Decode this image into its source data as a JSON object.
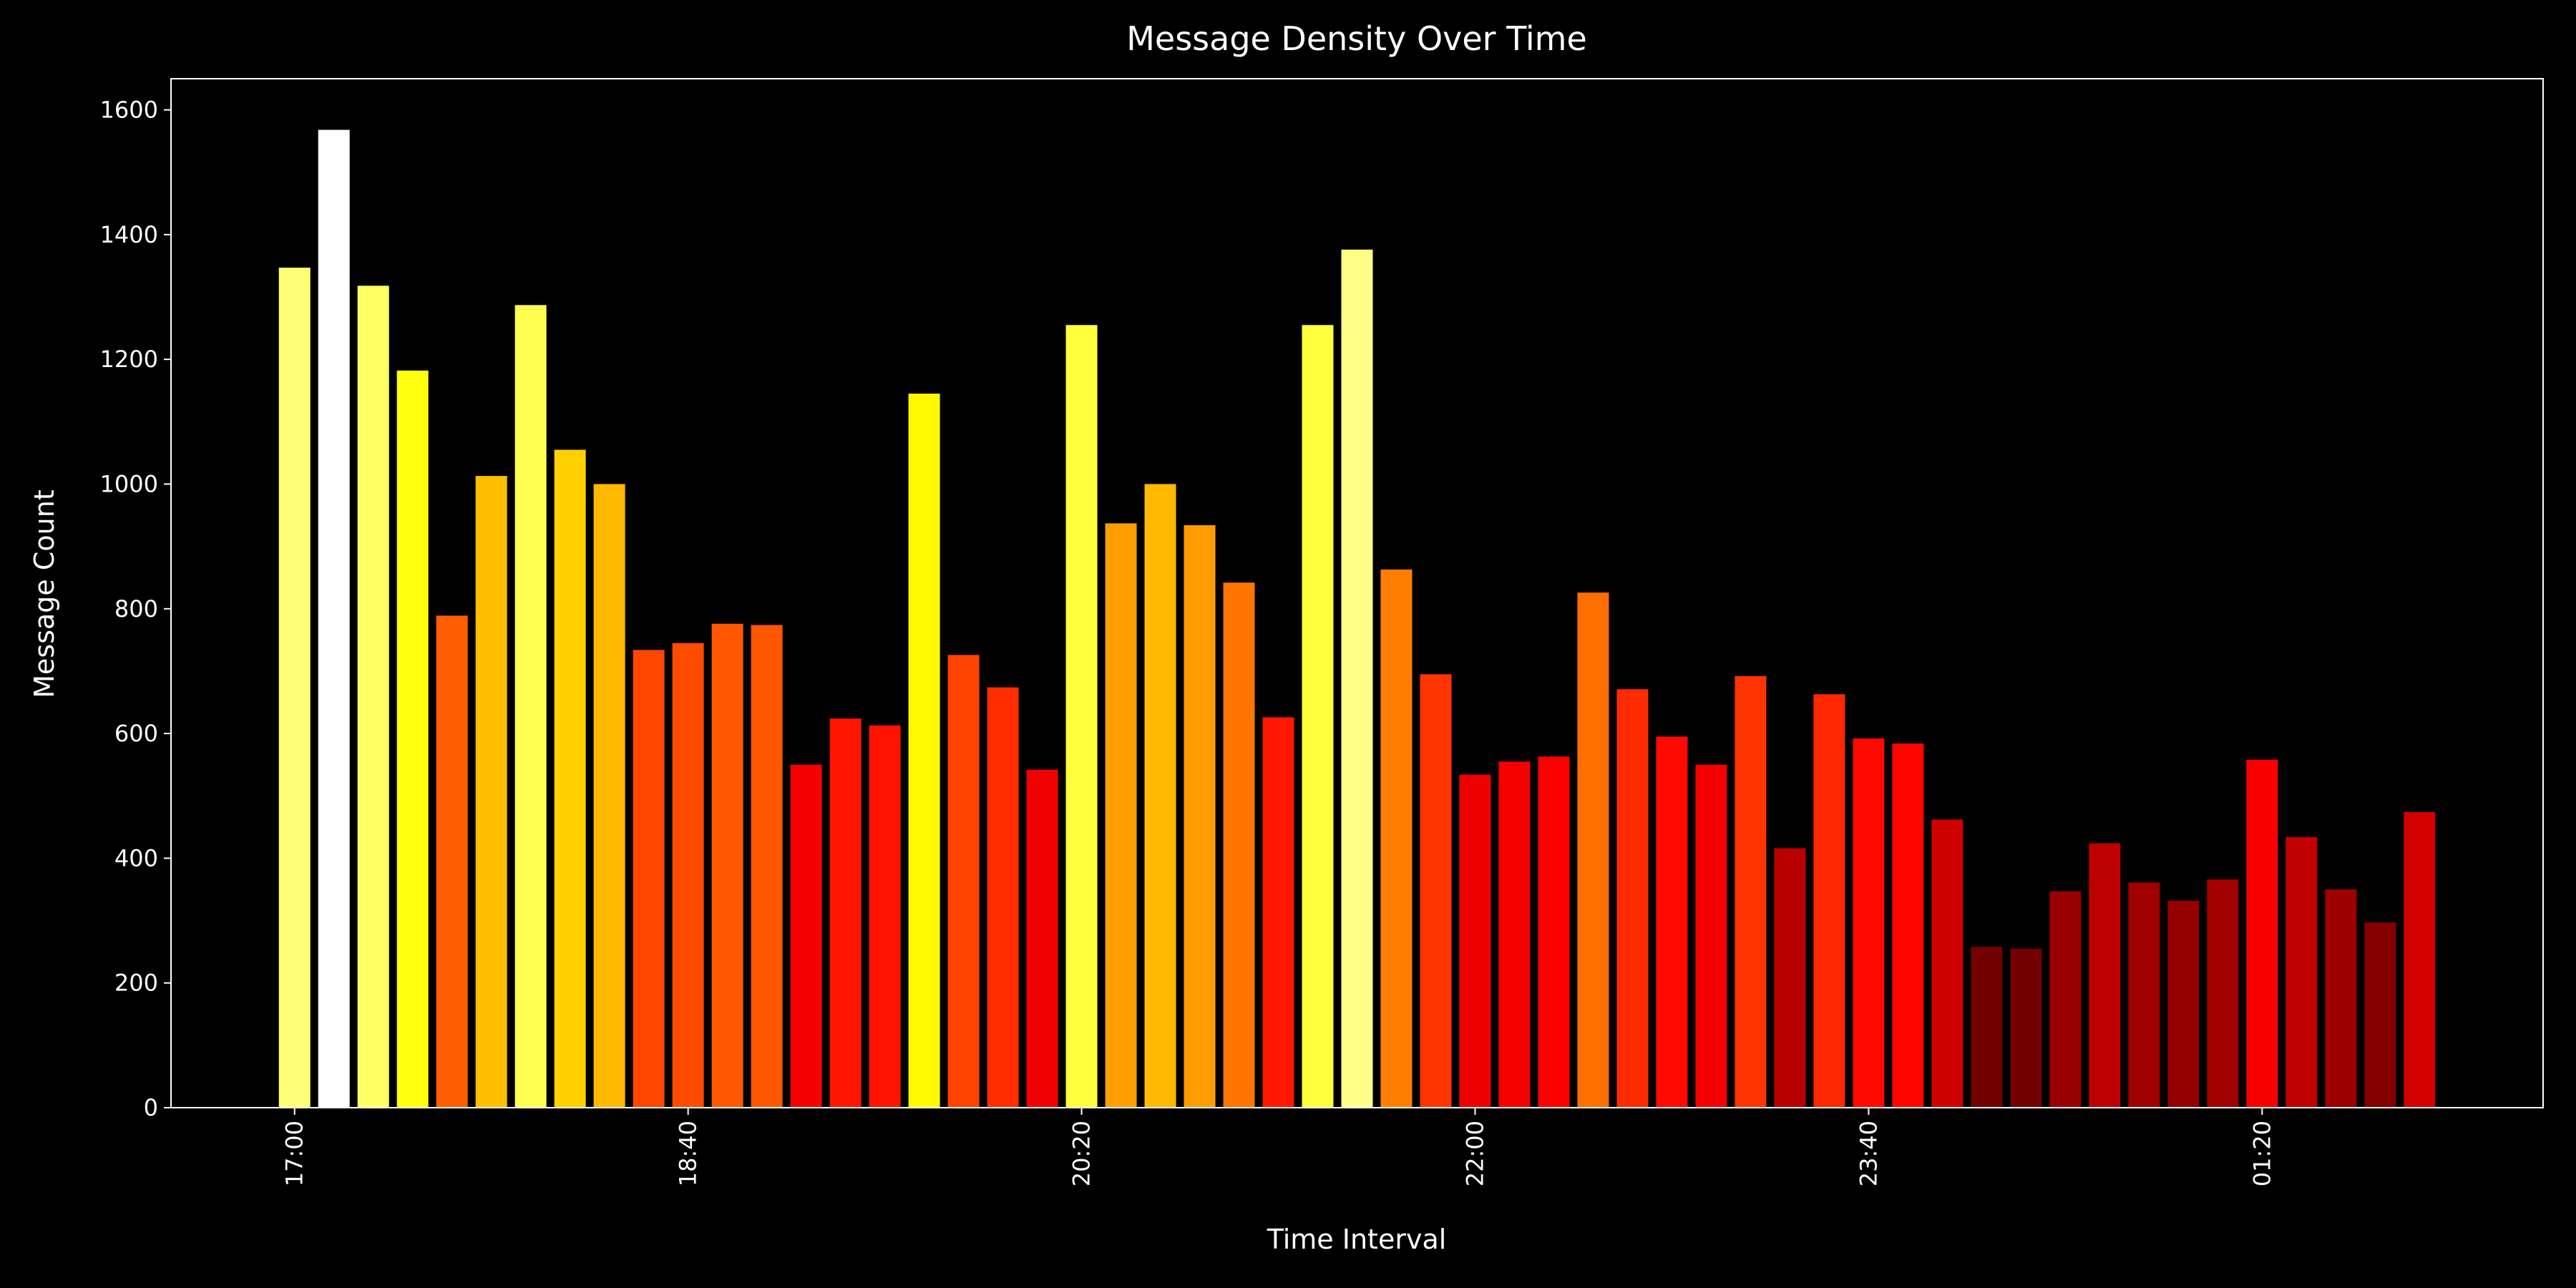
{
  "chart_data": {
    "type": "bar",
    "title": "Message Density Over Time",
    "x_label": "Time Interval",
    "y_label": "Message Count",
    "categories": [
      "17:00",
      null,
      null,
      null,
      null,
      null,
      null,
      null,
      null,
      null,
      "18:40",
      null,
      null,
      null,
      null,
      null,
      null,
      null,
      null,
      null,
      "20:20",
      null,
      null,
      null,
      null,
      null,
      null,
      null,
      null,
      null,
      "22:00",
      null,
      null,
      null,
      null,
      null,
      null,
      null,
      null,
      null,
      "23:40",
      null,
      null,
      null,
      null,
      null,
      null,
      null,
      null,
      null,
      "01:20",
      null,
      null,
      null,
      null
    ],
    "values": [
      1347,
      1568,
      1318,
      1182,
      789,
      1013,
      1287,
      1055,
      1000,
      734,
      745,
      776,
      774,
      550,
      624,
      613,
      1145,
      726,
      674,
      542,
      1255,
      937,
      1000,
      934,
      842,
      626,
      1255,
      1376,
      863,
      695,
      534,
      555,
      563,
      826,
      671,
      595,
      550,
      692,
      416,
      663,
      592,
      584,
      462,
      258,
      255,
      347,
      424,
      361,
      332,
      366,
      558,
      434,
      350,
      297,
      474
    ],
    "colormap": "hot",
    "ylim": [
      0,
      1650
    ],
    "yticks": [
      0,
      200,
      400,
      600,
      800,
      1000,
      1200,
      1400,
      1600
    ]
  }
}
